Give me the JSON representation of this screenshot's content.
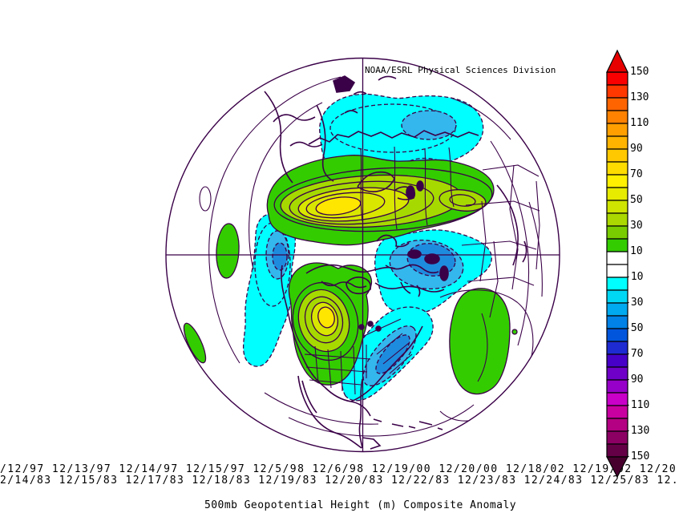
{
  "header": {
    "title": "NOAA/ESRL Physical Sciences Division"
  },
  "footer": {
    "dates_row1": "/12/97 12/13/97 12/14/97 12/15/97 12/5/98 12/6/98 12/19/00 12/20/00 12/18/02 12/19/02 12/20",
    "dates_row2": "2/14/83 12/15/83 12/17/83 12/18/83 12/19/83 12/20/83 12/22/83 12/23/83 12/24/83 12/25/83 12.",
    "caption": "500mb Geopotential Height (m) Composite Anomaly"
  },
  "colorbar": {
    "labels": [
      "150",
      "130",
      "110",
      "90",
      "70",
      "50",
      "30",
      "10",
      "-10",
      "-30",
      "-50",
      "-70",
      "-90",
      "-110",
      "-130",
      "-150"
    ],
    "segment_colors": [
      "#fa0000",
      "#ff3800",
      "#ff6400",
      "#ff8200",
      "#ffa000",
      "#ffb400",
      "#ffc800",
      "#ffdc00",
      "#fff000",
      "#e6eb00",
      "#cfe400",
      "#aad800",
      "#78cc00",
      "#33cc00",
      "#ffffff",
      "#ffffff",
      "#00ffff",
      "#00d7f5",
      "#00aaf0",
      "#0082e6",
      "#0055dc",
      "#1e2bd2",
      "#4600c8",
      "#6e00c8",
      "#9600c8",
      "#c800c8",
      "#c800a0",
      "#b40082",
      "#8c0064",
      "#640046"
    ],
    "arrow_top_color": "#e60000",
    "arrow_bottom_color": "#47002e",
    "border_color": "#000000"
  },
  "map": {
    "line_color": "#3a0048",
    "fills": {
      "green": "#33cc00",
      "yellow_green": "#a6d900",
      "pale_yellow": "#d9e600",
      "yellow": "#ffe600",
      "cyan": "#00ffff",
      "mid_blue": "#33b7ec",
      "deep_blue": "#1e8cde"
    }
  },
  "chart_data": {
    "type": "heatmap",
    "title": "500mb Geopotential Height (m) Composite Anomaly",
    "source_label": "NOAA/ESRL Physical Sciences Division",
    "projection": "Northern Hemisphere polar stereographic",
    "units": "m",
    "contour_interval": 10,
    "colorbar_range": [
      -150,
      150
    ],
    "colorbar_ticks": [
      150,
      130,
      110,
      90,
      70,
      50,
      30,
      10,
      -10,
      -30,
      -50,
      -70,
      -90,
      -110,
      -130,
      -150
    ],
    "composite_dates_row1": [
      "/12/97",
      "12/13/97",
      "12/14/97",
      "12/15/97",
      "12/5/98",
      "12/6/98",
      "12/19/00",
      "12/20/00",
      "12/18/02",
      "12/19/02",
      "12/20"
    ],
    "composite_dates_row2": [
      "2/14/83",
      "12/15/83",
      "12/17/83",
      "12/18/83",
      "12/19/83",
      "12/20/83",
      "12/22/83",
      "12/23/83",
      "12/24/83",
      "12/25/83",
      "12."
    ],
    "anomaly_centers": [
      {
        "location": "central Eurasia",
        "sign": "positive",
        "peak_anomaly_m": 70
      },
      {
        "location": "western North America",
        "sign": "positive",
        "peak_anomaly_m": 70
      },
      {
        "location": "Arctic / Siberian sector",
        "sign": "negative",
        "peak_anomaly_m": -40
      },
      {
        "location": "Gulf of Alaska / eastern North Pacific",
        "sign": "negative",
        "peak_anomaly_m": -50
      },
      {
        "location": "Europe / western Russia",
        "sign": "negative",
        "peak_anomaly_m": -50
      },
      {
        "location": "eastern North America / western Atlantic",
        "sign": "negative",
        "peak_anomaly_m": -50
      },
      {
        "location": "central North Atlantic",
        "sign": "positive",
        "peak_anomaly_m": 30
      },
      {
        "location": "northeast Pacific west of California",
        "sign": "positive",
        "peak_anomaly_m": 30
      }
    ]
  }
}
